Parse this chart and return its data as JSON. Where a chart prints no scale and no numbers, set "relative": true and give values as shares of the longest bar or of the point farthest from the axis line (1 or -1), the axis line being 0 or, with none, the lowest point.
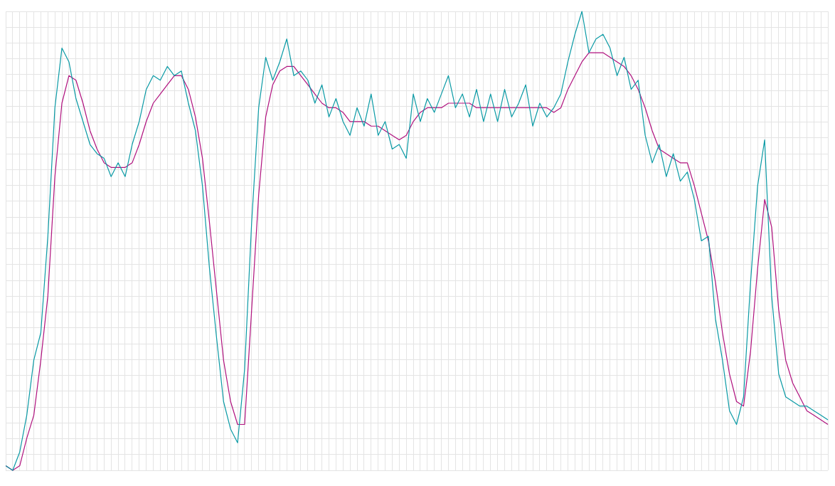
{
  "chart_data": {
    "type": "line",
    "relative": true,
    "grid": true,
    "legend": false,
    "marker": "none",
    "line_style": "solid",
    "categories": [
      null,
      null,
      null,
      null,
      null,
      null,
      null,
      null,
      null,
      null,
      null,
      null,
      null,
      null,
      null,
      null,
      null,
      null,
      null,
      null,
      null,
      null,
      null,
      null,
      null,
      null,
      null,
      null,
      null,
      null,
      null,
      null,
      null,
      null,
      null,
      null,
      null,
      null,
      null,
      null,
      null,
      null,
      null,
      null,
      null,
      null,
      null,
      null,
      null,
      null,
      null,
      null,
      null,
      null,
      null,
      null,
      null,
      null,
      null,
      null,
      null,
      null,
      null,
      null,
      null,
      null,
      null,
      null,
      null,
      null,
      null,
      null,
      null,
      null,
      null,
      null,
      null,
      null,
      null,
      null,
      null,
      null,
      null,
      null,
      null,
      null,
      null,
      null,
      null,
      null,
      null,
      null,
      null,
      null,
      null,
      null,
      null,
      null,
      null,
      null,
      null,
      null,
      null,
      null,
      null,
      null,
      null,
      null,
      null,
      null,
      null,
      null,
      null,
      null,
      null,
      null,
      null,
      null
    ],
    "series": [
      {
        "color": "#0a9aa5",
        "values": [
          0.01,
          0.0,
          0.04,
          0.12,
          0.24,
          0.3,
          0.51,
          0.79,
          0.92,
          0.89,
          0.81,
          0.76,
          0.71,
          0.69,
          0.68,
          0.64,
          0.67,
          0.64,
          0.71,
          0.76,
          0.83,
          0.86,
          0.85,
          0.88,
          0.86,
          0.87,
          0.8,
          0.74,
          0.62,
          0.44,
          0.29,
          0.15,
          0.09,
          0.06,
          0.22,
          0.54,
          0.79,
          0.9,
          0.85,
          0.89,
          0.94,
          0.86,
          0.87,
          0.85,
          0.8,
          0.84,
          0.77,
          0.81,
          0.76,
          0.73,
          0.79,
          0.75,
          0.82,
          0.73,
          0.76,
          0.7,
          0.71,
          0.68,
          0.82,
          0.76,
          0.81,
          0.78,
          0.82,
          0.86,
          0.79,
          0.82,
          0.77,
          0.83,
          0.76,
          0.82,
          0.76,
          0.83,
          0.77,
          0.8,
          0.84,
          0.75,
          0.8,
          0.77,
          0.79,
          0.82,
          0.89,
          0.95,
          1.0,
          0.91,
          0.94,
          0.95,
          0.92,
          0.86,
          0.9,
          0.83,
          0.85,
          0.73,
          0.67,
          0.71,
          0.64,
          0.69,
          0.63,
          0.65,
          0.59,
          0.5,
          0.51,
          0.33,
          0.24,
          0.13,
          0.1,
          0.16,
          0.41,
          0.62,
          0.72,
          0.38,
          0.21,
          0.16,
          0.15,
          0.14,
          0.14,
          0.13,
          0.12,
          0.11
        ]
      },
      {
        "color": "#b0117e",
        "values": [
          0.01,
          0.0,
          0.01,
          0.07,
          0.12,
          0.24,
          0.38,
          0.64,
          0.8,
          0.86,
          0.85,
          0.8,
          0.74,
          0.7,
          0.67,
          0.66,
          0.66,
          0.66,
          0.67,
          0.71,
          0.76,
          0.8,
          0.82,
          0.84,
          0.86,
          0.86,
          0.83,
          0.77,
          0.68,
          0.54,
          0.39,
          0.24,
          0.15,
          0.1,
          0.1,
          0.35,
          0.6,
          0.77,
          0.84,
          0.87,
          0.88,
          0.88,
          0.86,
          0.84,
          0.82,
          0.8,
          0.79,
          0.79,
          0.78,
          0.76,
          0.76,
          0.76,
          0.75,
          0.75,
          0.74,
          0.73,
          0.72,
          0.73,
          0.76,
          0.78,
          0.79,
          0.79,
          0.79,
          0.8,
          0.8,
          0.8,
          0.8,
          0.79,
          0.79,
          0.79,
          0.79,
          0.79,
          0.79,
          0.79,
          0.79,
          0.79,
          0.79,
          0.79,
          0.78,
          0.79,
          0.83,
          0.86,
          0.89,
          0.91,
          0.91,
          0.91,
          0.9,
          0.89,
          0.88,
          0.86,
          0.83,
          0.79,
          0.74,
          0.7,
          0.69,
          0.68,
          0.67,
          0.67,
          0.62,
          0.56,
          0.5,
          0.41,
          0.3,
          0.21,
          0.15,
          0.14,
          0.26,
          0.44,
          0.59,
          0.53,
          0.35,
          0.24,
          0.19,
          0.16,
          0.13,
          0.12,
          0.11,
          0.1
        ]
      }
    ]
  }
}
